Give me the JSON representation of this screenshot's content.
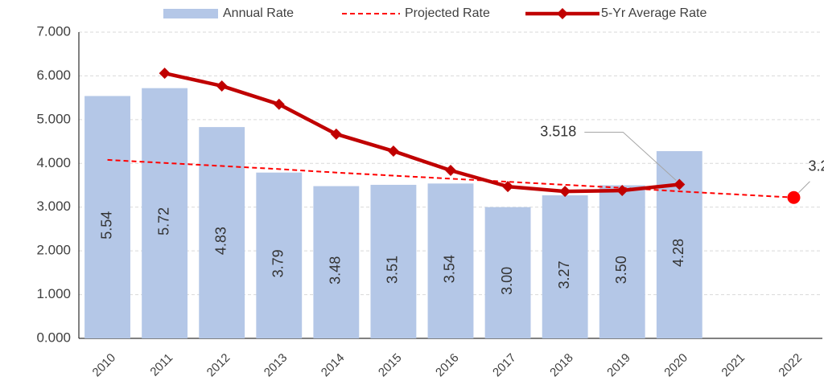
{
  "chart_data": {
    "type": "bar",
    "categories": [
      "2010",
      "2011",
      "2012",
      "2013",
      "2014",
      "2015",
      "2016",
      "2017",
      "2018",
      "2019",
      "2020",
      "2021",
      "2022"
    ],
    "series": [
      {
        "name": "Annual Rate",
        "type": "bar",
        "color": "#b4c7e7",
        "values": [
          5.54,
          5.72,
          4.83,
          3.79,
          3.48,
          3.51,
          3.54,
          3.0,
          3.27,
          3.5,
          4.28,
          null,
          null
        ],
        "value_labels": [
          "5.54",
          "5.72",
          "4.83",
          "3.79",
          "3.48",
          "3.51",
          "3.54",
          "3.00",
          "3.27",
          "3.50",
          "4.28",
          null,
          null
        ]
      },
      {
        "name": "Projected Rate",
        "type": "dashed-line",
        "color": "#ff0000",
        "values": [
          4.08,
          4.01,
          3.94,
          3.87,
          3.79,
          3.72,
          3.65,
          3.58,
          3.51,
          3.44,
          3.36,
          3.29,
          3.22
        ],
        "value_labels": [
          null,
          null,
          null,
          null,
          null,
          null,
          null,
          null,
          null,
          null,
          null,
          null,
          "3.2"
        ]
      },
      {
        "name": "5-Yr Average Rate",
        "type": "line",
        "color": "#c00000",
        "values": [
          null,
          6.06,
          5.77,
          5.35,
          4.67,
          4.28,
          3.84,
          3.47,
          3.36,
          3.38,
          3.518,
          null,
          null
        ],
        "value_labels": [
          null,
          null,
          null,
          null,
          null,
          null,
          null,
          null,
          null,
          null,
          "3.518",
          null,
          null
        ]
      }
    ],
    "ylim": [
      0,
      7
    ],
    "yticks": [
      {
        "value": 0,
        "label": "0.000"
      },
      {
        "value": 1,
        "label": "1.000"
      },
      {
        "value": 2,
        "label": "2.000"
      },
      {
        "value": 3,
        "label": "3.000"
      },
      {
        "value": 4,
        "label": "4.000"
      },
      {
        "value": 5,
        "label": "5.000"
      },
      {
        "value": 6,
        "label": "6.000"
      },
      {
        "value": 7,
        "label": "7.000"
      }
    ],
    "grid": true,
    "legend": "top"
  }
}
